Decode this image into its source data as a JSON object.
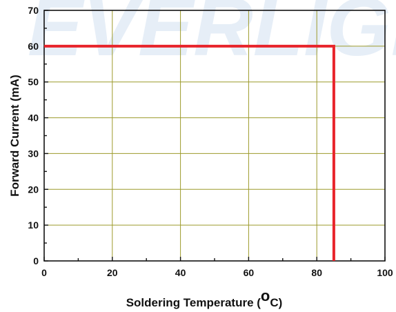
{
  "chart_data": {
    "type": "line",
    "watermark": "EVERLIGHT",
    "xlabel_main": "Soldering Temperature (",
    "xlabel_super": "o",
    "xlabel_end": "C)",
    "ylabel": "Forward Current (mA)",
    "xlim": [
      0,
      100
    ],
    "ylim": [
      0,
      70
    ],
    "xticks": [
      0,
      20,
      40,
      60,
      80,
      100
    ],
    "yticks": [
      0,
      10,
      20,
      30,
      40,
      50,
      60,
      70
    ],
    "xtick_labels": [
      "0",
      "20",
      "40",
      "60",
      "80",
      "100"
    ],
    "ytick_labels": [
      "0",
      "10",
      "20",
      "30",
      "40",
      "50",
      "60",
      "70"
    ],
    "grid": true,
    "series": [
      {
        "color": "#e8242b",
        "points": [
          [
            0,
            60
          ],
          [
            85,
            60
          ],
          [
            85,
            0
          ]
        ]
      }
    ],
    "colors": {
      "grid": "#9c9a2a",
      "axis": "#111111",
      "watermark": "#e6eef7"
    }
  }
}
